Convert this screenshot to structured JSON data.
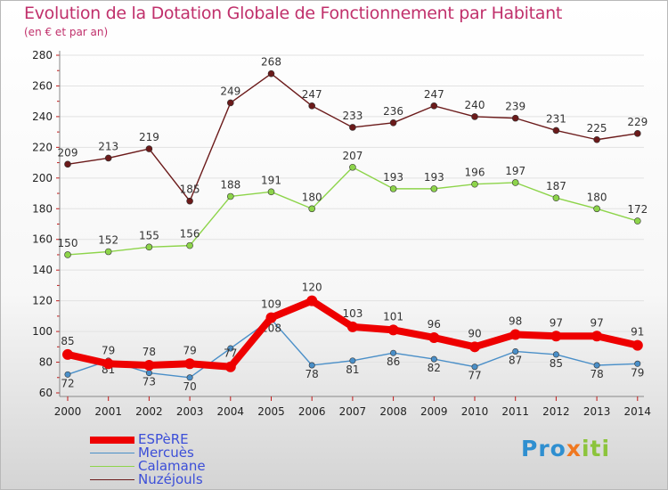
{
  "title": "Evolution de la Dotation Globale de Fonctionnement par Habitant",
  "subtitle": "(en € et par an)",
  "logo": {
    "part1": "Pro",
    "part2": "x",
    "part3": "iti"
  },
  "chart_data": {
    "type": "line",
    "x": [
      2000,
      2001,
      2002,
      2003,
      2004,
      2005,
      2006,
      2007,
      2008,
      2009,
      2010,
      2011,
      2012,
      2013,
      2014
    ],
    "x_tick_labels": [
      "2000",
      "2001",
      "2002",
      "2003",
      "2004",
      "2005",
      "2006",
      "2007",
      "2008",
      "2009",
      "2010",
      "2011",
      "2012",
      "2013",
      "2014"
    ],
    "ylim": [
      60,
      280
    ],
    "y_ticks": [
      60,
      80,
      100,
      120,
      140,
      160,
      180,
      200,
      220,
      240,
      260,
      280
    ],
    "y_tick_labels": [
      "60",
      "80",
      "100",
      "120",
      "140",
      "160",
      "180",
      "200",
      "220",
      "240",
      "260",
      "280"
    ],
    "legend_position": "bottom-left",
    "series": [
      {
        "name": "Nuzéjouls",
        "color": "#6b1a1a",
        "values": [
          209,
          213,
          219,
          185,
          249,
          268,
          247,
          233,
          236,
          247,
          240,
          239,
          231,
          225,
          229
        ]
      },
      {
        "name": "Calamane",
        "color": "#8dd44a",
        "values": [
          150,
          152,
          155,
          156,
          188,
          191,
          180,
          207,
          193,
          193,
          196,
          197,
          187,
          180,
          172
        ]
      },
      {
        "name": "Mercuès",
        "color": "#4a8fc8",
        "values": [
          72,
          81,
          73,
          70,
          89,
          108,
          78,
          81,
          86,
          82,
          77,
          87,
          85,
          78,
          79
        ]
      },
      {
        "name": "ESPèRE",
        "color": "#ee0000",
        "values": [
          85,
          79,
          78,
          79,
          77,
          109,
          120,
          103,
          101,
          96,
          90,
          98,
          97,
          97,
          91
        ]
      }
    ],
    "label_text": {
      "Nuzéjouls": [
        "209",
        "213",
        "219",
        "185",
        "249",
        "268",
        "247",
        "233",
        "236",
        "247",
        "240",
        "239",
        "231",
        "225",
        "229"
      ],
      "Calamane": [
        "150",
        "152",
        "155",
        "156",
        "188",
        "191",
        "180",
        "207",
        "193",
        "193",
        "196",
        "197",
        "187",
        "180",
        "172"
      ],
      "Mercuès": [
        "72",
        "81",
        "73",
        "70",
        "",
        "108",
        "78",
        "81",
        "86",
        "82",
        "77",
        "87",
        "85",
        "78",
        "79"
      ],
      "ESPèRE": [
        "85",
        "79",
        "78",
        "79",
        "77",
        "109",
        "120",
        "103",
        "101",
        "96",
        "90",
        "98",
        "97",
        "97",
        "91"
      ]
    },
    "legend_order": [
      "ESPèRE",
      "Mercuès",
      "Calamane",
      "Nuzéjouls"
    ]
  }
}
